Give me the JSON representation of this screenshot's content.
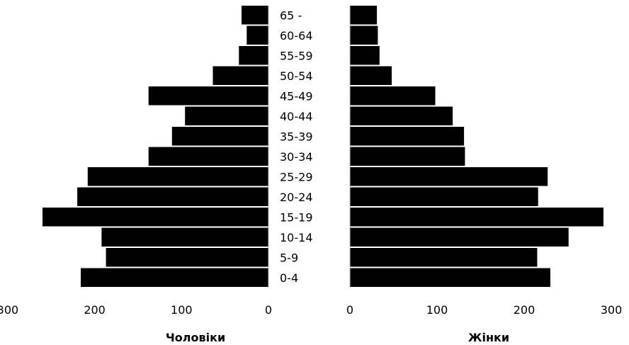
{
  "chart_data": {
    "type": "bar",
    "subtype": "population-pyramid",
    "categories": [
      "65 -",
      "60-64",
      "55-59",
      "50-54",
      "45-49",
      "40-44",
      "35-39",
      "30-34",
      "25-29",
      "20-24",
      "15-19",
      "10-14",
      "5-9",
      "0-4"
    ],
    "series": [
      {
        "name": "Чоловіки",
        "side": "left",
        "values": [
          31,
          25,
          34,
          64,
          138,
          96,
          111,
          138,
          208,
          220,
          260,
          192,
          187,
          216
        ]
      },
      {
        "name": "Жінки",
        "side": "right",
        "values": [
          31,
          32,
          34,
          48,
          98,
          118,
          131,
          132,
          227,
          216,
          291,
          251,
          215,
          230
        ]
      }
    ],
    "left_axis": {
      "label": "Чоловіки",
      "ticks": [
        "300",
        "200",
        "100",
        "0"
      ],
      "range": [
        0,
        300
      ]
    },
    "right_axis": {
      "label": "Жінки",
      "ticks": [
        "0",
        "100",
        "200",
        "300"
      ],
      "range": [
        0,
        300
      ]
    },
    "grid": false,
    "bar_color": "#000000"
  }
}
